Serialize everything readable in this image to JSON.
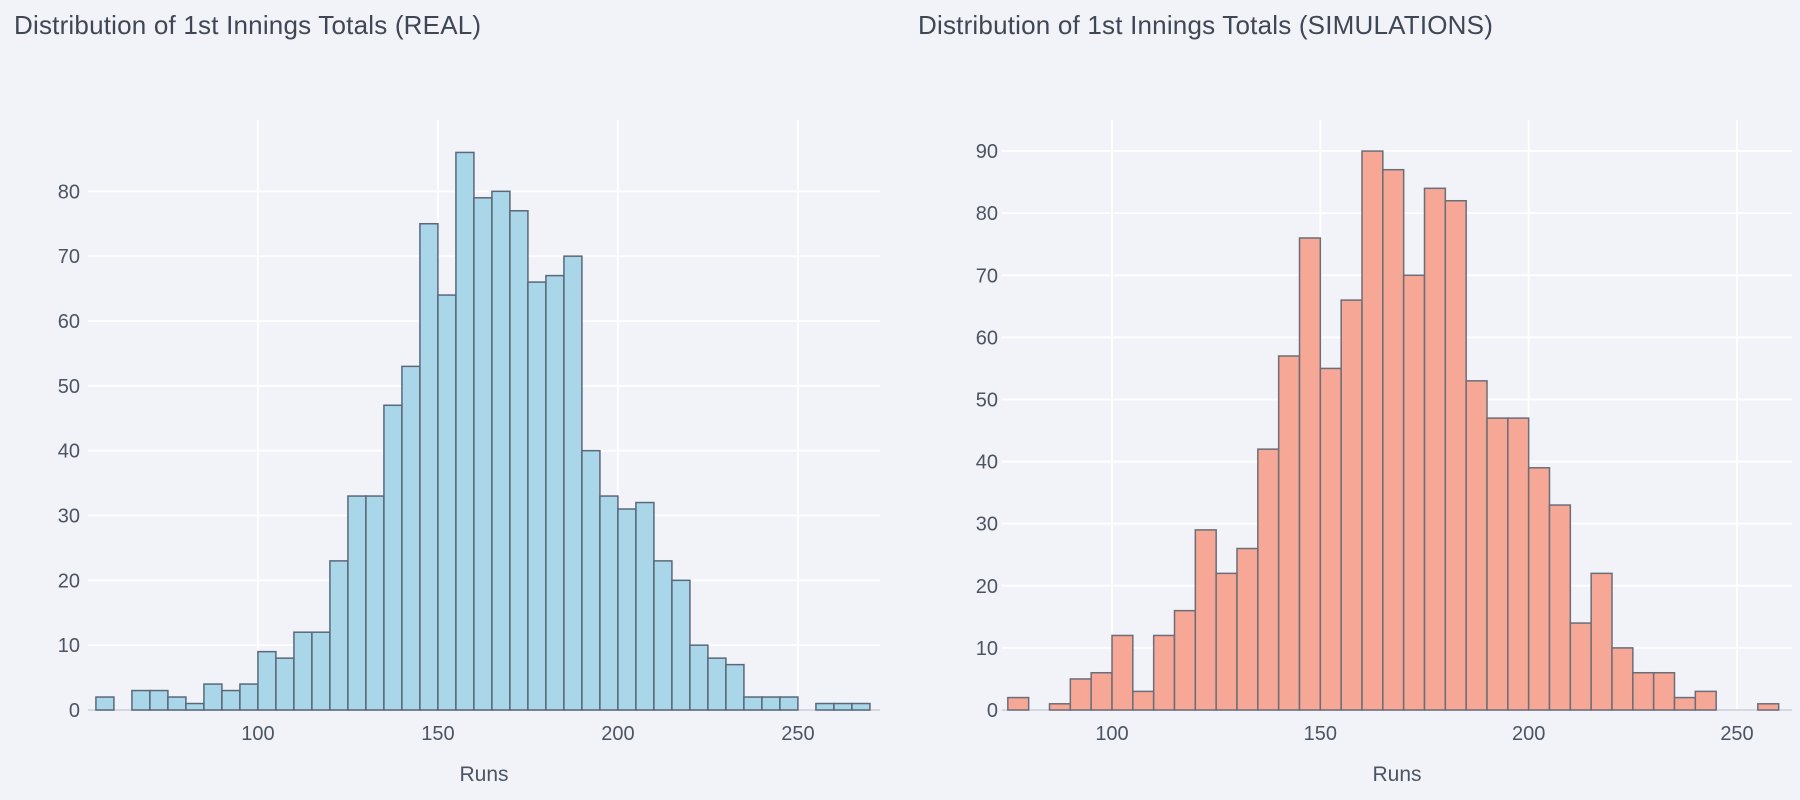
{
  "page": {
    "background_color": "#f2f3f8"
  },
  "chart_data": [
    {
      "type": "bar",
      "subtype": "histogram",
      "title": "Distribution of 1st Innings Totals (REAL)",
      "xlabel": "Runs",
      "ylabel": "",
      "bar_color": "#a9d6e8",
      "bar_edge_color": "#5a6878",
      "grid": true,
      "legend_position": "none",
      "bin_start": 55,
      "bin_size": 5,
      "counts": [
        2,
        0,
        3,
        3,
        2,
        1,
        4,
        3,
        4,
        9,
        8,
        12,
        12,
        23,
        33,
        33,
        47,
        53,
        75,
        64,
        86,
        79,
        80,
        77,
        66,
        67,
        70,
        40,
        33,
        31,
        32,
        23,
        20,
        10,
        8,
        7,
        2,
        2,
        2,
        0,
        1,
        1,
        1
      ],
      "xticks": [
        100,
        150,
        200,
        250
      ],
      "yticks": [
        0,
        10,
        20,
        30,
        40,
        50,
        60,
        70,
        80
      ],
      "xlim": [
        52.8,
        272.8
      ],
      "ylim": [
        0,
        91
      ]
    },
    {
      "type": "bar",
      "subtype": "histogram",
      "title": "Distribution of 1st Innings Totals (SIMULATIONS)",
      "xlabel": "Runs",
      "ylabel": "",
      "bar_color": "#f6a795",
      "bar_edge_color": "#6a6e78",
      "grid": true,
      "legend_position": "none",
      "bin_start": 75,
      "bin_size": 5,
      "counts": [
        2,
        0,
        1,
        5,
        6,
        12,
        3,
        12,
        16,
        29,
        22,
        26,
        42,
        57,
        76,
        55,
        66,
        90,
        87,
        70,
        84,
        82,
        53,
        47,
        47,
        39,
        33,
        14,
        22,
        10,
        6,
        6,
        2,
        3,
        0,
        0,
        1
      ],
      "xticks": [
        100,
        150,
        200,
        250
      ],
      "yticks": [
        0,
        10,
        20,
        30,
        40,
        50,
        60,
        70,
        80,
        90
      ],
      "xlim": [
        73.6,
        263.2
      ],
      "ylim": [
        0,
        95
      ]
    }
  ],
  "style": {
    "gridline_color": "rgba(255,255,255,0.9)",
    "baseline_color": "#d3d8e2",
    "tick_label_color": "#4b5462",
    "title_color": "#3f4755"
  }
}
